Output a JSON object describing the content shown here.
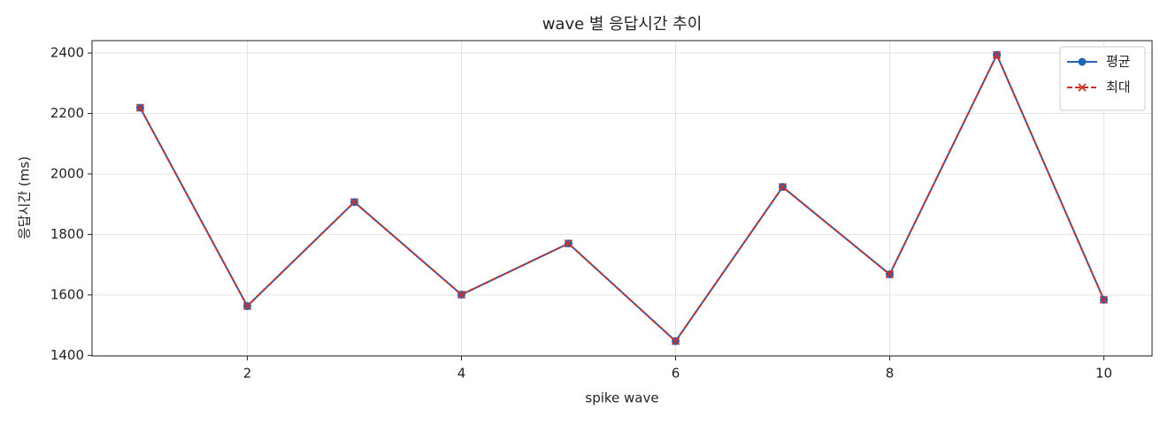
{
  "chart_data": {
    "type": "line",
    "title": "wave 별 응답시간 추이",
    "xlabel": "spike wave",
    "ylabel": "응답시간 (ms)",
    "x": [
      1,
      2,
      3,
      4,
      5,
      6,
      7,
      8,
      9,
      10
    ],
    "series": [
      {
        "name": "평균",
        "color": "#1f66b8",
        "marker": "o",
        "linestyle": "solid",
        "values": [
          2219,
          1563,
          1907,
          1601,
          1770,
          1447,
          1957,
          1668,
          2394,
          1584
        ]
      },
      {
        "name": "최대",
        "color": "#c9302c",
        "marker": "x",
        "linestyle": "dashed",
        "values": [
          2219,
          1563,
          1907,
          1601,
          1770,
          1447,
          1957,
          1668,
          2394,
          1584
        ]
      }
    ],
    "xlim": [
      0.55,
      10.45
    ],
    "xticks": [
      2,
      4,
      6,
      8,
      10
    ],
    "ylim": [
      1398,
      2441
    ],
    "yticks": [
      1400,
      1600,
      1800,
      2000,
      2200,
      2400
    ],
    "grid": true,
    "legend": "upper right"
  }
}
